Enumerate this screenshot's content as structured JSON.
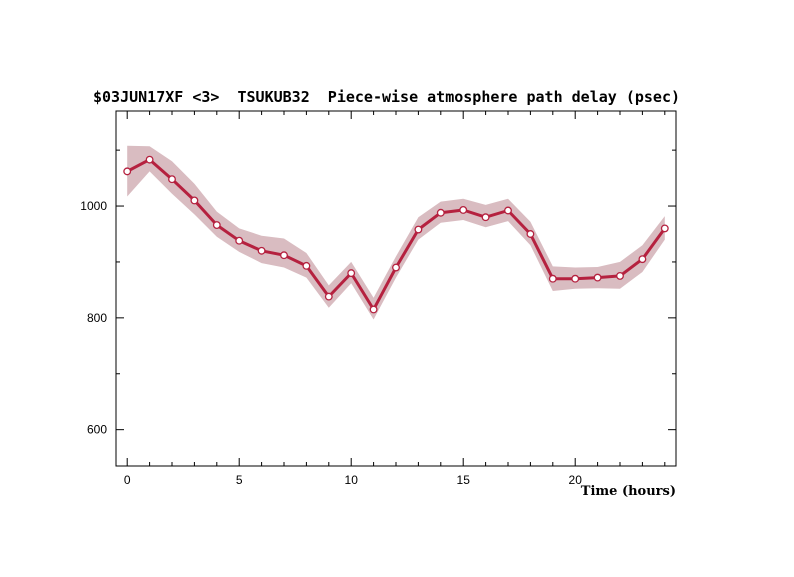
{
  "chart_data": {
    "type": "line",
    "title": "$03JUN17XF <3>  TSUKUB32  Piece-wise atmosphere path delay (psec)",
    "xlabel": "Time (hours)",
    "ylabel": "",
    "xlim": [
      -0.5,
      24.5
    ],
    "ylim": [
      535,
      1170
    ],
    "x_ticks": [
      0,
      5,
      10,
      15,
      20
    ],
    "y_ticks": [
      600,
      800,
      1000
    ],
    "grid": false,
    "legend": "none",
    "colors": {
      "line": "#b5213f",
      "band": "#d9bcc1",
      "marker_fill": "#ffffff",
      "axis": "#000000"
    },
    "series": [
      {
        "x": [
          0,
          1,
          2,
          3,
          4,
          5,
          6,
          7,
          8,
          9,
          10,
          11,
          12,
          13,
          14,
          15,
          16,
          17,
          18,
          19,
          20,
          21,
          22,
          23,
          24
        ],
        "values": [
          1062,
          1083,
          1048,
          1010,
          966,
          938,
          920,
          912,
          893,
          838,
          880,
          815,
          890,
          958,
          988,
          993,
          980,
          992,
          950,
          870,
          870,
          872,
          875,
          905,
          960
        ],
        "upper": [
          1108,
          1107,
          1080,
          1040,
          990,
          960,
          947,
          942,
          916,
          858,
          900,
          836,
          910,
          980,
          1008,
          1013,
          1002,
          1013,
          972,
          892,
          890,
          891,
          900,
          930,
          982
        ],
        "lower": [
          1017,
          1062,
          1022,
          985,
          945,
          918,
          898,
          890,
          872,
          818,
          862,
          797,
          872,
          940,
          970,
          975,
          962,
          973,
          930,
          848,
          852,
          853,
          852,
          882,
          940
        ]
      }
    ]
  }
}
